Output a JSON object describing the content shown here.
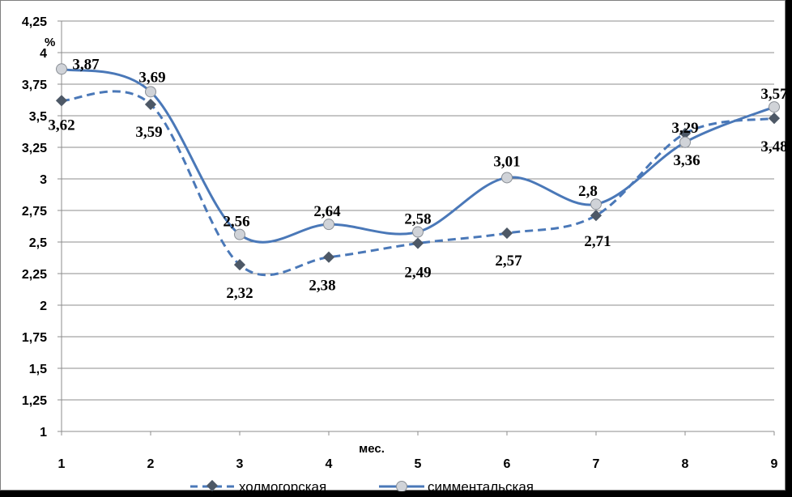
{
  "chart_data": {
    "type": "line",
    "x": [
      1,
      2,
      3,
      4,
      5,
      6,
      7,
      8,
      9
    ],
    "xlabel": "мес.",
    "ylabel": "%",
    "ylim": [
      1,
      4.25
    ],
    "y_ticks": [
      "1",
      "1,25",
      "1,5",
      "1,75",
      "2",
      "2,25",
      "2,5",
      "2,75",
      "3",
      "3,25",
      "3,5",
      "3,75",
      "4",
      "4,25"
    ],
    "x_ticks": [
      "1",
      "2",
      "3",
      "4",
      "5",
      "6",
      "7",
      "8",
      "9"
    ],
    "grid": true,
    "legend_position": "bottom",
    "series": [
      {
        "name": "холмогорская",
        "values": [
          3.62,
          3.59,
          2.32,
          2.38,
          2.49,
          2.57,
          2.71,
          3.36,
          3.48
        ],
        "labels": [
          "3,62",
          "3,59",
          "2,32",
          "2,38",
          "2,49",
          "2,57",
          "2,71",
          "3,36",
          "3,48"
        ],
        "color": "#4a78b8",
        "marker_color": "#4d5866",
        "line_style": "dashed",
        "marker": "diamond"
      },
      {
        "name": "симментальская",
        "values": [
          3.87,
          3.69,
          2.56,
          2.64,
          2.58,
          3.01,
          2.8,
          3.29,
          3.57
        ],
        "labels": [
          "3,87",
          "3,69",
          "2,56",
          "2,64",
          "2,58",
          "3,01",
          "2,8",
          "3,29",
          "3,57"
        ],
        "color": "#4a78b8",
        "marker_color": "#d0d3d8",
        "line_style": "solid",
        "marker": "circle"
      }
    ]
  }
}
